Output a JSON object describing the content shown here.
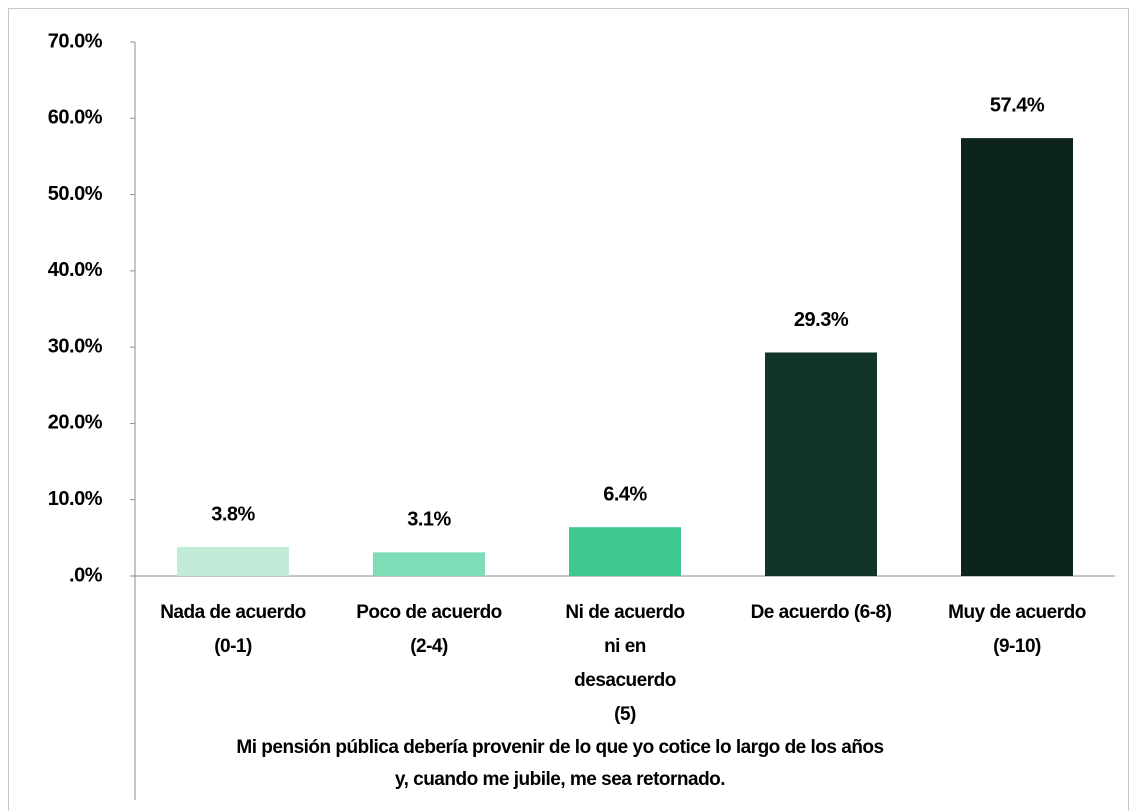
{
  "chart_data": {
    "type": "bar",
    "x_axis_label": "Mi pensión pública debería provenir de lo que yo cotice lo largo de los años y, cuando me jubile, me sea retornado.",
    "categories": [
      "Nada de acuerdo (0-1)",
      "Poco de acuerdo (2-4)",
      "Ni de acuerdo ni en desacuerdo (5)",
      "De acuerdo (6-8)",
      "Muy de acuerdo (9-10)"
    ],
    "values": [
      3.8,
      3.1,
      6.4,
      29.3,
      57.4
    ],
    "value_labels": [
      "3.8%",
      "3.1%",
      "6.4%",
      "29.3%",
      "57.4%"
    ],
    "colors": [
      "#c0ecd8",
      "#7edcb6",
      "#3ec991",
      "#12352a",
      "#0c241c"
    ],
    "ylim": [
      0,
      70
    ],
    "yticks": [
      {
        "value": 0,
        "label": ".0%"
      },
      {
        "value": 10,
        "label": "10.0%"
      },
      {
        "value": 20,
        "label": "20.0%"
      },
      {
        "value": 30,
        "label": "30.0%"
      },
      {
        "value": 40,
        "label": "40.0%"
      },
      {
        "value": 50,
        "label": "50.0%"
      },
      {
        "value": 60,
        "label": "60.0%"
      },
      {
        "value": 70,
        "label": "70.0%"
      }
    ],
    "grid": false
  }
}
